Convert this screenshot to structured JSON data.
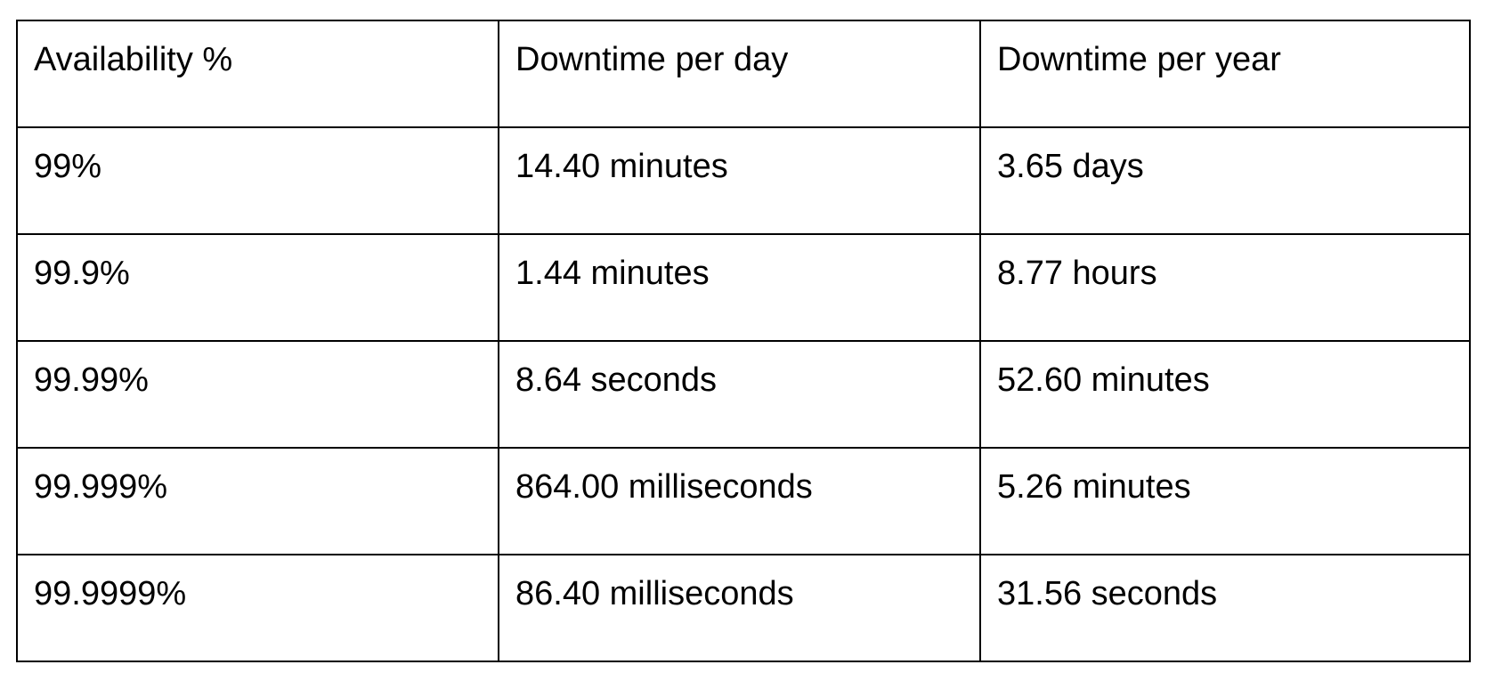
{
  "table": {
    "headers": [
      "Availability %",
      "Downtime per day",
      "Downtime per year"
    ],
    "rows": [
      [
        "99%",
        "14.40 minutes",
        "3.65 days"
      ],
      [
        "99.9%",
        "1.44 minutes",
        "8.77 hours"
      ],
      [
        "99.99%",
        "8.64 seconds",
        "52.60 minutes"
      ],
      [
        "99.999%",
        "864.00 milliseconds",
        "5.26 minutes"
      ],
      [
        "99.9999%",
        "86.40 milliseconds",
        "31.56 seconds"
      ]
    ]
  }
}
